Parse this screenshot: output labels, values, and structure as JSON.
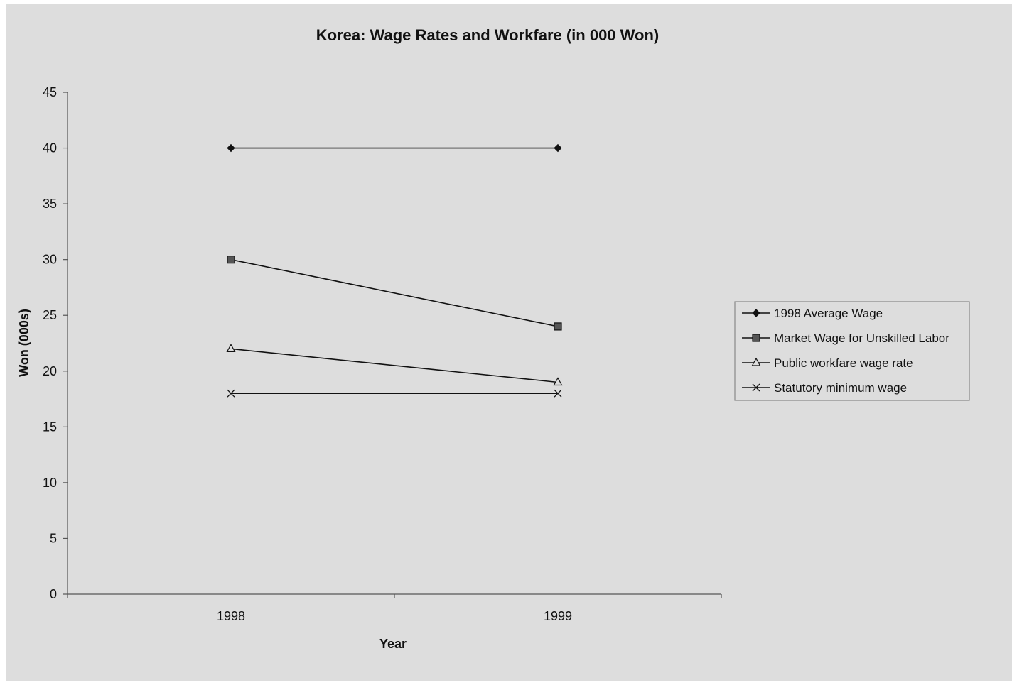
{
  "chart_data": {
    "type": "line",
    "title": "Korea:  Wage Rates and Workfare (in 000 Won)",
    "xlabel": "Year",
    "ylabel": "Won (000s)",
    "categories": [
      "1998",
      "1999"
    ],
    "ylim": [
      0,
      45
    ],
    "yticks": [
      0,
      5,
      10,
      15,
      20,
      25,
      30,
      35,
      40,
      45
    ],
    "grid": false,
    "legend_position": "right",
    "series": [
      {
        "name": "1998 Average Wage",
        "values": [
          40,
          40
        ],
        "marker": "diamond"
      },
      {
        "name": "Market Wage for Unskilled Labor",
        "values": [
          30,
          24
        ],
        "marker": "square"
      },
      {
        "name": "Public workfare wage rate",
        "values": [
          22,
          19
        ],
        "marker": "triangle"
      },
      {
        "name": "Statutory minimum wage",
        "values": [
          18,
          18
        ],
        "marker": "x"
      }
    ],
    "colors": {
      "background": "#dddddd",
      "line": "#111111",
      "axis": "#555555",
      "legend_border": "#888888",
      "square_fill": "#555555"
    }
  }
}
